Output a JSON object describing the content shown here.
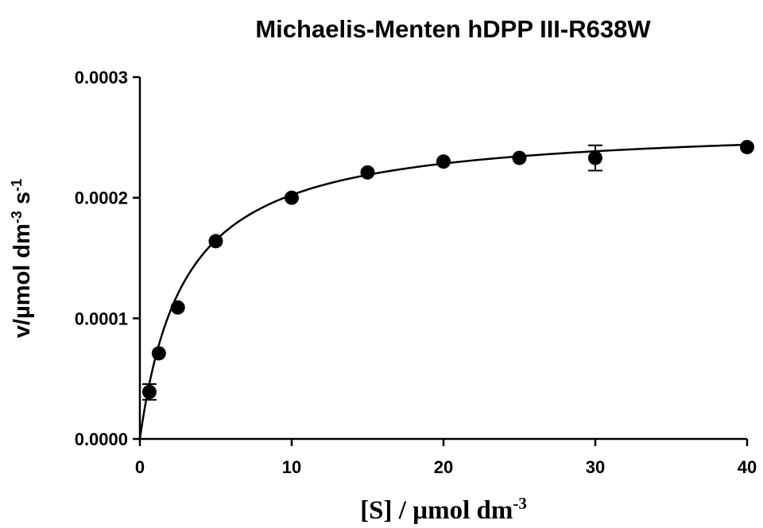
{
  "chart_data": {
    "type": "scatter",
    "title": "Michaelis-Menten hDPP III-R638W",
    "xlabel": {
      "base": "[S] / µmol dm",
      "sup": "-3"
    },
    "ylabel": {
      "part1": "v/µmol dm",
      "sup1": "-3",
      "part2": " s",
      "sup2": "-1"
    },
    "xlim": [
      0,
      40
    ],
    "ylim": [
      0,
      0.0003
    ],
    "x_ticks": [
      0,
      10,
      20,
      30,
      40
    ],
    "x_tick_labels": [
      "0",
      "10",
      "20",
      "30",
      "40"
    ],
    "y_ticks": [
      0,
      0.0001,
      0.0002,
      0.0003
    ],
    "y_tick_labels": [
      "0.0000",
      "0.0001",
      "0.0002",
      "0.0003"
    ],
    "grid": false,
    "series": [
      {
        "x": [
          0.625,
          1.25,
          2.5,
          5,
          10,
          15,
          20,
          25,
          30,
          40
        ],
        "y": [
          3.9e-05,
          7.1e-05,
          0.000109,
          0.000164,
          0.0002,
          0.000221,
          0.00023,
          0.000233,
          0.000233,
          0.000242
        ],
        "y_err": [
          6.5e-06,
          0,
          0,
          0,
          0,
          0,
          0,
          0,
          1.05e-05,
          0
        ],
        "marker": "circle",
        "color": "#000000"
      }
    ],
    "fit": {
      "model": "michaelis-menten",
      "vmax": 0.000262,
      "km": 2.95,
      "color": "#000000"
    }
  }
}
